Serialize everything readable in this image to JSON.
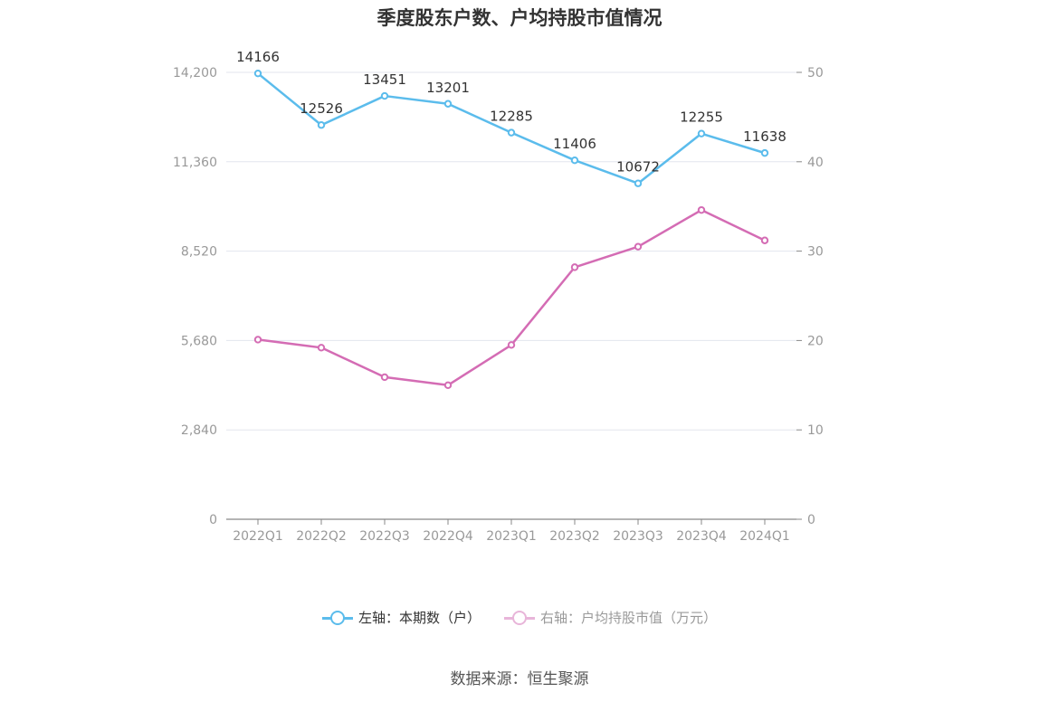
{
  "title": "季度股东户数、户均持股市值情况",
  "source": "数据来源：恒生聚源",
  "colors": {
    "left_series": "#5bbcec",
    "right_series": "#d46cb4",
    "grid": "#e3e6ee",
    "axis": "#888888",
    "tick_text": "#999999"
  },
  "chart_data": {
    "type": "line",
    "title": "季度股东户数、户均持股市值情况",
    "categories": [
      "2022Q1",
      "2022Q2",
      "2022Q3",
      "2022Q4",
      "2023Q1",
      "2023Q2",
      "2023Q3",
      "2023Q4",
      "2024Q1"
    ],
    "left_axis": {
      "min": 0,
      "max": 14200,
      "ticks": [
        "0",
        "2,840",
        "5,680",
        "8,520",
        "11,360",
        "14,200"
      ]
    },
    "right_axis": {
      "min": 0,
      "max": 50,
      "ticks": [
        "0",
        "10",
        "20",
        "30",
        "40",
        "50"
      ]
    },
    "grid": true,
    "legend_position": "bottom",
    "series": [
      {
        "name": "左轴：本期数（户）",
        "axis": "left",
        "color": "#5bbcec",
        "values": [
          14166,
          12526,
          13451,
          13201,
          12285,
          11406,
          10672,
          12255,
          11638
        ],
        "labels": [
          "14166",
          "12526",
          "13451",
          "13201",
          "12285",
          "11406",
          "10672",
          "12255",
          "11638"
        ]
      },
      {
        "name": "右轴：户均持股市值（万元）",
        "axis": "right",
        "color": "#d46cb4",
        "values": [
          20.1,
          19.2,
          15.9,
          15.0,
          19.5,
          28.2,
          30.5,
          34.6,
          31.2
        ]
      }
    ]
  }
}
